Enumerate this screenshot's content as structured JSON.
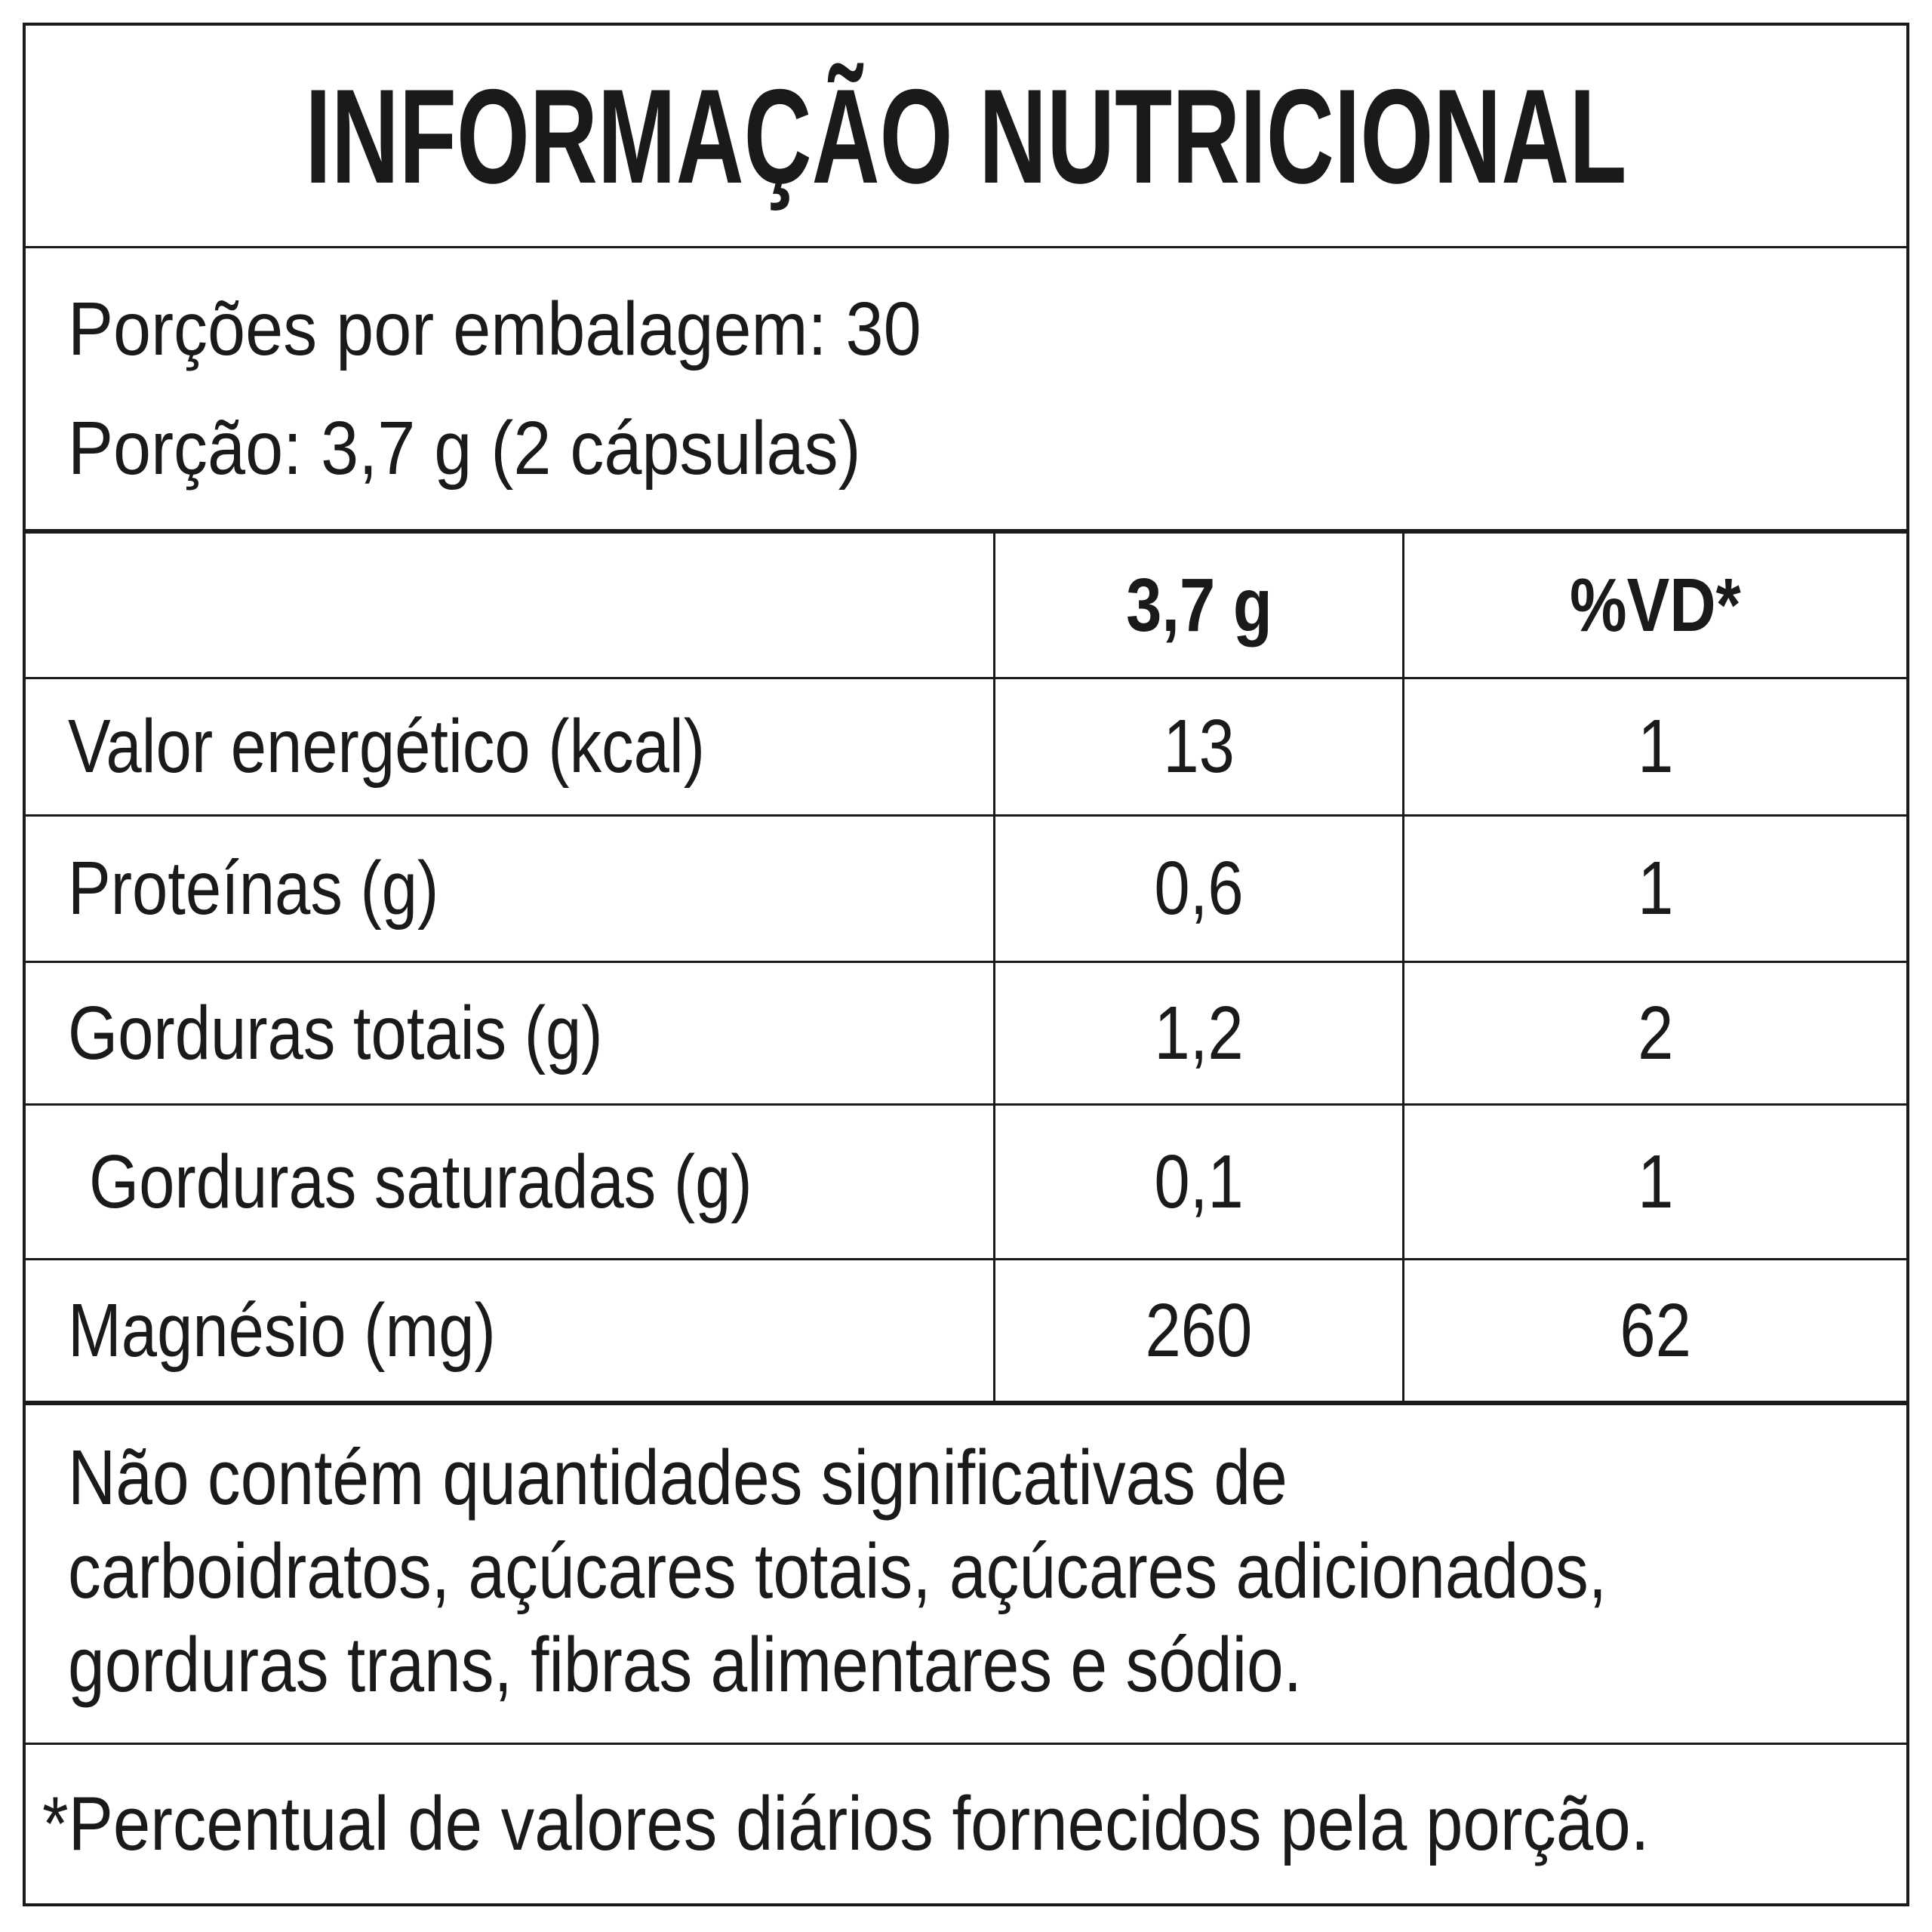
{
  "label": {
    "title": "INFORMAÇÃO NUTRICIONAL",
    "servings": {
      "per_package": "Porções por embalagem: 30",
      "serving_size": "Porção: 3,7 g (2 cápsulas)"
    },
    "table": {
      "columns": {
        "amount": "3,7 g",
        "daily_value": "%VD*"
      },
      "rows": [
        {
          "label": "Valor energético (kcal)",
          "amount": "13",
          "dv": "1"
        },
        {
          "label": "Proteínas (g)",
          "amount": "0,6",
          "dv": "1"
        },
        {
          "label": "Gorduras totais (g)",
          "amount": "1,2",
          "dv": "2"
        },
        {
          "label": "Gorduras saturadas (g)",
          "amount": "0,1",
          "dv": "1"
        },
        {
          "label": "Magnésio (mg)",
          "amount": "260",
          "dv": "62"
        }
      ]
    },
    "note_lines": [
      "Não contém quantidades significativas de",
      "carboidratos, açúcares totais, açúcares adicionados,",
      "gorduras trans, fibras alimentares e sódio."
    ],
    "footnote": "*Percentual de valores diários fornecidos pela porção.",
    "colors": {
      "text": "#1a1a1a",
      "background": "#ffffff",
      "border": "#1a1a1a"
    }
  }
}
